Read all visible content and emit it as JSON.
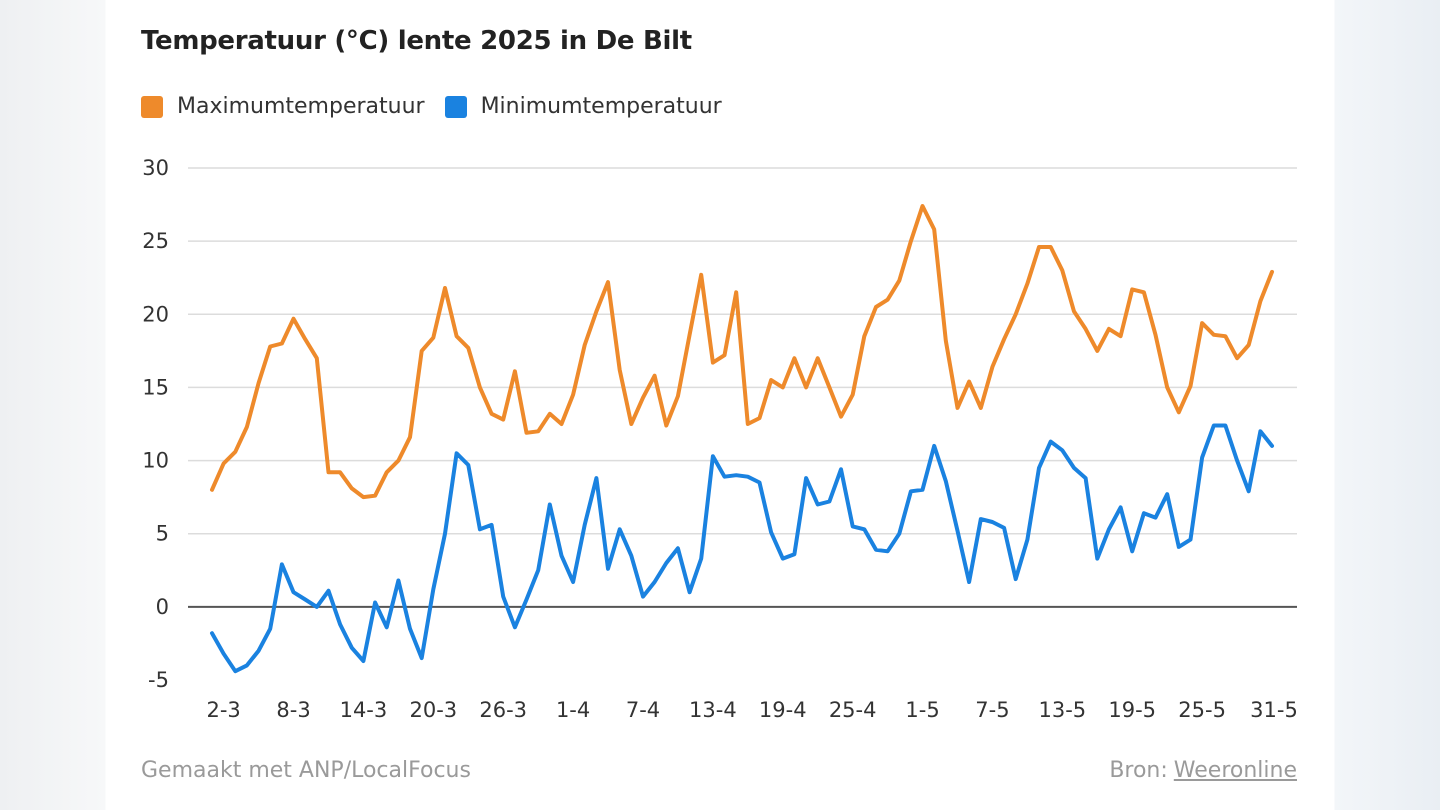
{
  "chart_data": {
    "type": "line",
    "title": "Temperatuur (°C) lente 2025 in De Bilt",
    "legend_position": "top-left",
    "grid": true,
    "ylim": [
      -5,
      30
    ],
    "yticks": [
      "30",
      "25",
      "20",
      "15",
      "10",
      "5",
      "0",
      "-5"
    ],
    "xticks": [
      "2-3",
      "8-3",
      "14-3",
      "20-3",
      "26-3",
      "1-4",
      "7-4",
      "13-4",
      "19-4",
      "25-4",
      "1-5",
      "7-5",
      "13-5",
      "19-5",
      "25-5",
      "31-5"
    ],
    "x_start": "2025-03-01",
    "x_end": "2025-05-31",
    "series": [
      {
        "name": "Maximumtemperatuur",
        "color": "#ee8a2b",
        "values": [
          8.0,
          9.8,
          10.6,
          12.3,
          15.3,
          17.8,
          18.0,
          19.7,
          18.3,
          17.0,
          9.2,
          9.2,
          8.1,
          7.5,
          7.6,
          9.2,
          10.0,
          11.6,
          17.5,
          18.4,
          21.8,
          18.5,
          17.7,
          15.0,
          13.2,
          12.8,
          16.1,
          11.9,
          12.0,
          13.2,
          12.5,
          14.5,
          17.9,
          20.2,
          22.2,
          16.2,
          12.5,
          14.3,
          15.8,
          12.4,
          14.4,
          18.6,
          22.7,
          16.7,
          17.2,
          21.5,
          12.5,
          12.9,
          15.5,
          15.0,
          17.0,
          15.0,
          17.0,
          15.0,
          13.0,
          14.5,
          18.5,
          20.5,
          21.0,
          22.3,
          25.0,
          27.4,
          25.8,
          18.2,
          13.6,
          15.4,
          13.6,
          16.4,
          18.3,
          20.0,
          22.1,
          24.6,
          24.6,
          23.0,
          20.2,
          19.0,
          17.5,
          19.0,
          18.5,
          21.7,
          21.5,
          18.6,
          15.0,
          13.3,
          15.1,
          19.4,
          18.6,
          18.5,
          17.0,
          17.9,
          20.9,
          22.9
        ],
        "min_values": [
          -1.8,
          -3.2,
          -4.4,
          -4.0,
          -3.0,
          -1.5,
          2.9,
          1.0,
          0.5,
          0.0,
          1.1,
          -1.2,
          -2.8,
          -3.7,
          0.3,
          -1.4,
          1.8,
          -1.5,
          -3.5,
          1.2,
          5.0,
          10.5,
          9.7,
          5.3,
          5.6,
          0.7,
          -1.4,
          0.5,
          2.5,
          7.0,
          3.5,
          1.7,
          5.6,
          8.8,
          2.6,
          5.3,
          3.5,
          0.7,
          1.7,
          3.0,
          4.0,
          1.0,
          3.3,
          10.3,
          8.9,
          9.0,
          8.9,
          8.5,
          5.1,
          3.3,
          3.6,
          8.8,
          7.0,
          7.2,
          9.4,
          5.5,
          5.3,
          3.9,
          3.8,
          5.0,
          7.9,
          8.0,
          11.0,
          8.6,
          5.2,
          1.7,
          6.0,
          5.8,
          5.4,
          1.9,
          4.6,
          9.5,
          11.3,
          10.7,
          9.5,
          8.8,
          3.3,
          5.3,
          6.8,
          3.8,
          6.4,
          6.1,
          7.7,
          4.1,
          4.6,
          10.2,
          12.4,
          12.4,
          10.0,
          7.9,
          12.0,
          11.0
        ]
      },
      {
        "name": "Minimumtemperatuur",
        "color": "#1a82e0"
      }
    ]
  },
  "footer": {
    "left": "Gemaakt met ANP/LocalFocus",
    "source_label": "Bron:",
    "source_link": "Weeronline"
  }
}
